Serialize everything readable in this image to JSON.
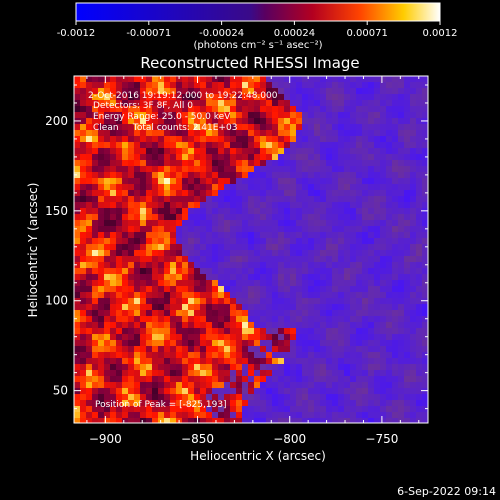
{
  "colorbar": {
    "ticks": [
      "-0.0012",
      "-0.00071",
      "-0.00024",
      "0.00024",
      "0.00071",
      "0.0012"
    ],
    "unit_label": "(photons cm⁻² s⁻¹ asec⁻²)"
  },
  "title": "Reconstructed RHESSI Image",
  "annotations": [
    "2-Oct-2016 19:19:12.000 to 19:22:48.000",
    "Detectors: 3F 8F, All 0",
    "Energy Range: 25.0 - 50.0 keV",
    "Clean     Total counts: 2.41E+03"
  ],
  "peak_text": "Position of Peak = [-825,193]",
  "axes": {
    "x_label": "Heliocentric X (arcsec)",
    "y_label": "Heliocentric Y (arcsec)",
    "x_ticks": [
      -900,
      -850,
      -800,
      -750
    ],
    "y_ticks": [
      50,
      100,
      150,
      200
    ],
    "x_range": [
      -917,
      -725
    ],
    "y_range": [
      32,
      225
    ]
  },
  "footer_timestamp": "6-Sep-2022 09:14",
  "colors": {
    "background": "#000000",
    "text": "#ffffff"
  }
}
